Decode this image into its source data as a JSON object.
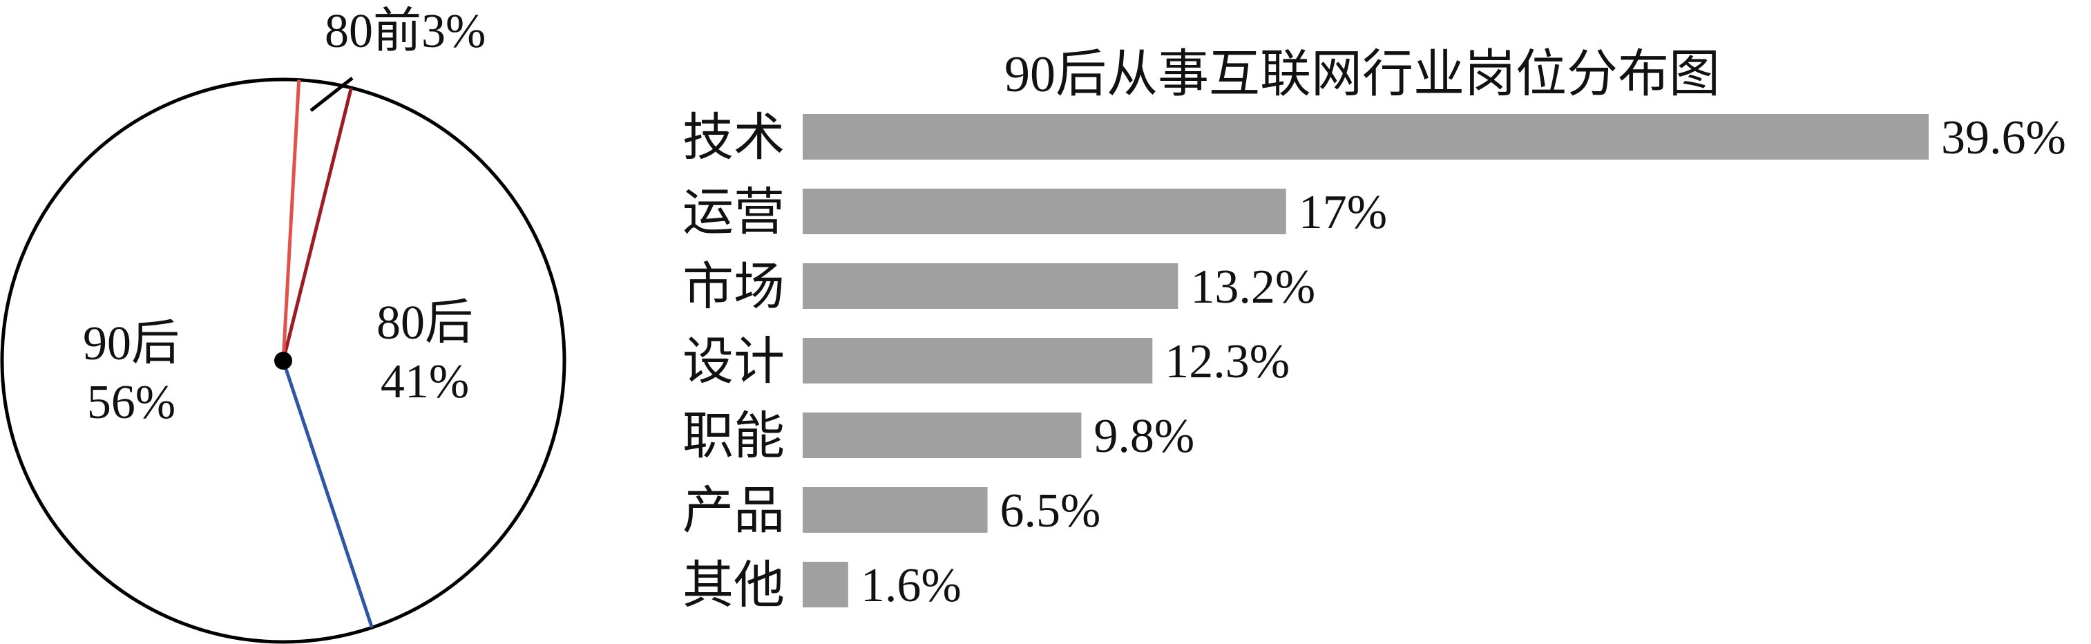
{
  "chart_data": [
    {
      "type": "pie",
      "slices": [
        {
          "label": "90后",
          "value": 56,
          "value_text": "56%"
        },
        {
          "label": "80后",
          "value": 41,
          "value_text": "41%"
        },
        {
          "label": "80前",
          "value": 3,
          "value_text": "3%"
        }
      ],
      "callout": "80前3%",
      "colors": {
        "outline": "#000000",
        "divider_90_80": "#2f55a4",
        "divider_80_pre": "#9b1c24",
        "divider_pre_90": "#e0534a"
      }
    },
    {
      "type": "bar",
      "orientation": "horizontal",
      "title": "90后从事互联网行业岗位分布图",
      "categories": [
        "技术",
        "运营",
        "市场",
        "设计",
        "职能",
        "产品",
        "其他"
      ],
      "values": [
        39.6,
        17,
        13.2,
        12.3,
        9.8,
        6.5,
        1.6
      ],
      "value_labels": [
        "39.6%",
        "17%",
        "13.2%",
        "12.3%",
        "9.8%",
        "6.5%",
        "1.6%"
      ],
      "xlim": [
        0,
        39.6
      ],
      "bar_color": "#a0a0a0",
      "grid": false,
      "legend": "none"
    }
  ]
}
